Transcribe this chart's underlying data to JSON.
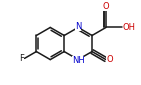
{
  "bg_color": "#ffffff",
  "line_color": "#1a1a1a",
  "n_color": "#0000cc",
  "o_color": "#cc0000",
  "line_width": 1.1,
  "font_size": 6.0,
  "figsize": [
    1.41,
    0.85
  ],
  "dpi": 100,
  "xlim": [
    -0.62,
    0.62
  ],
  "ylim": [
    -0.4,
    0.4
  ]
}
